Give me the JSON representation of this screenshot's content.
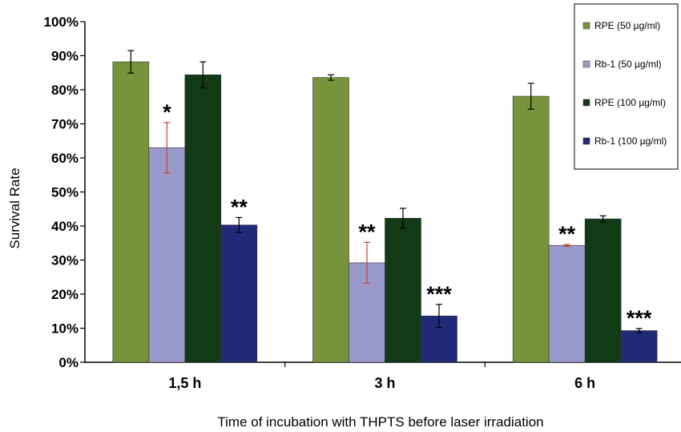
{
  "chart_data": {
    "type": "bar",
    "xlabel": "Time of incubation with THPTS before laser irradiation",
    "ylabel": "Survival Rate",
    "ylim": [
      0,
      100
    ],
    "yticks": [
      "0%",
      "10%",
      "20%",
      "30%",
      "40%",
      "50%",
      "60%",
      "70%",
      "80%",
      "90%",
      "100%"
    ],
    "categories": [
      "1,5 h",
      "3 h",
      "6 h"
    ],
    "legend_position": "top-right",
    "series": [
      {
        "name": "RPE (50 µg/ml)",
        "color": "#77933c",
        "values": [
          88.2,
          83.6,
          78.1
        ],
        "errors": [
          3.3,
          0.8,
          3.8
        ],
        "error_color": "#000000",
        "significance": [
          "",
          "",
          ""
        ]
      },
      {
        "name": "Rb-1 (50 µg/ml)",
        "color": "#9999cc",
        "values": [
          63.0,
          29.2,
          34.3
        ],
        "errors": [
          7.4,
          6.0,
          0.3
        ],
        "error_color": "#cc4422",
        "significance": [
          "*",
          "**",
          "**"
        ]
      },
      {
        "name": "RPE (100 µg/ml)",
        "color": "#133a17",
        "values": [
          84.4,
          42.3,
          42.1
        ],
        "errors": [
          3.8,
          2.9,
          0.9
        ],
        "error_color": "#000000",
        "significance": [
          "",
          "",
          ""
        ]
      },
      {
        "name": "Rb-1 (100 µg/ml)",
        "color": "#202a78",
        "values": [
          40.3,
          13.6,
          9.3
        ],
        "errors": [
          2.2,
          3.4,
          0.6
        ],
        "error_color": "#000000",
        "significance": [
          "**",
          "***",
          "***"
        ]
      }
    ]
  }
}
